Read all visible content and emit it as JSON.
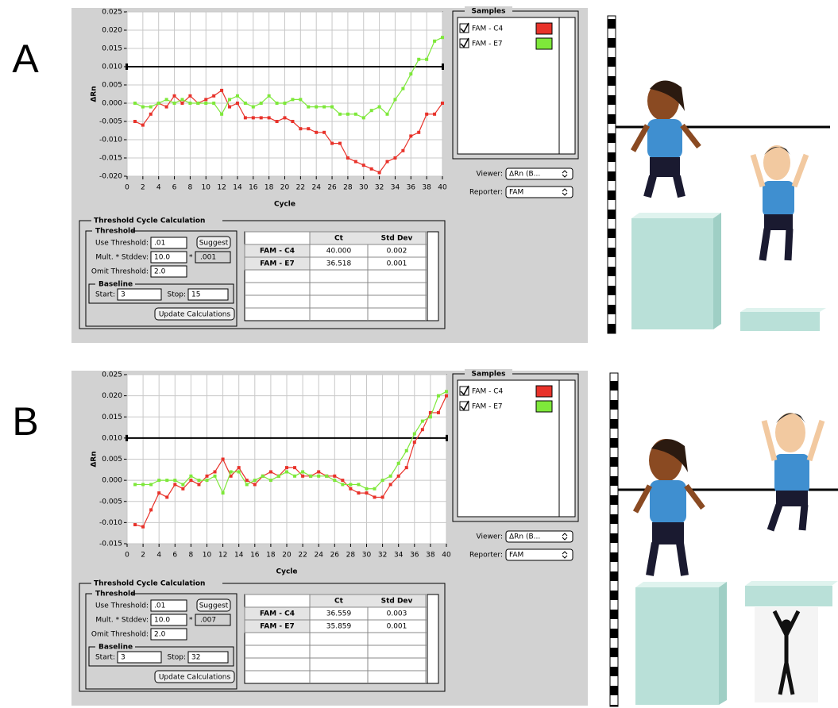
{
  "chart_data": [
    {
      "type": "line",
      "x_label": "Cycle",
      "y_label": "ΔRn",
      "x": [
        1,
        2,
        3,
        4,
        5,
        6,
        7,
        8,
        9,
        10,
        11,
        12,
        13,
        14,
        15,
        16,
        17,
        18,
        19,
        20,
        21,
        22,
        23,
        24,
        25,
        26,
        27,
        28,
        29,
        30,
        31,
        32,
        33,
        34,
        35,
        36,
        37,
        38,
        39,
        40
      ],
      "series": [
        {
          "name": "FAM - C4",
          "color": "#e8322a",
          "values": [
            -0.005,
            -0.006,
            -0.003,
            0.0,
            -0.001,
            0.002,
            0.0,
            0.002,
            0.0,
            0.001,
            0.002,
            0.0035,
            -0.001,
            0.0,
            -0.004,
            -0.004,
            -0.004,
            -0.004,
            -0.005,
            -0.004,
            -0.005,
            -0.007,
            -0.007,
            -0.008,
            -0.008,
            -0.011,
            -0.011,
            -0.015,
            -0.016,
            -0.017,
            -0.018,
            -0.019,
            -0.016,
            -0.015,
            -0.013,
            -0.009,
            -0.008,
            -0.003,
            -0.003,
            0.0
          ]
        },
        {
          "name": "FAM - E7",
          "color": "#7ee83a",
          "values": [
            0.0,
            -0.001,
            -0.001,
            0.0,
            0.001,
            0.0,
            0.001,
            0.0,
            0.0,
            0.0,
            0.0,
            -0.003,
            0.001,
            0.002,
            0.0,
            -0.001,
            0.0,
            0.002,
            0.0,
            0.0,
            0.001,
            0.001,
            -0.001,
            -0.001,
            -0.001,
            -0.001,
            -0.003,
            -0.003,
            -0.003,
            -0.004,
            -0.002,
            -0.001,
            -0.003,
            0.001,
            0.004,
            0.008,
            0.012,
            0.012,
            0.017,
            0.018
          ]
        }
      ],
      "threshold": 0.01,
      "xlim": [
        0,
        40
      ],
      "xticks": [
        0,
        2,
        4,
        6,
        8,
        10,
        12,
        14,
        16,
        18,
        20,
        22,
        24,
        26,
        28,
        30,
        32,
        34,
        36,
        38,
        40
      ],
      "ylim": [
        -0.02,
        0.025
      ],
      "yticks": [
        {
          "value": -0.02,
          "label": "-0.020"
        },
        -0.015,
        {
          "value": -0.01,
          "label": "-0.010"
        },
        -0.005,
        {
          "value": 0,
          "label": "0.000"
        },
        0.005,
        {
          "value": 0.01,
          "label": "0.010"
        },
        0.015,
        {
          "value": 0.02,
          "label": "0.020"
        },
        0.025
      ],
      "grid": true
    },
    {
      "type": "line",
      "x_label": "Cycle",
      "y_label": "ΔRn",
      "x": [
        1,
        2,
        3,
        4,
        5,
        6,
        7,
        8,
        9,
        10,
        11,
        12,
        13,
        14,
        15,
        16,
        17,
        18,
        19,
        20,
        21,
        22,
        23,
        24,
        25,
        26,
        27,
        28,
        29,
        30,
        31,
        32,
        33,
        34,
        35,
        36,
        37,
        38,
        39,
        40
      ],
      "series": [
        {
          "name": "FAM - C4",
          "color": "#e8322a",
          "values": [
            -0.0105,
            -0.011,
            -0.007,
            -0.003,
            -0.004,
            -0.001,
            -0.002,
            0.0,
            -0.001,
            0.001,
            0.002,
            0.005,
            0.001,
            0.003,
            0.0,
            -0.001,
            0.001,
            0.002,
            0.001,
            0.003,
            0.003,
            0.001,
            0.001,
            0.002,
            0.001,
            0.001,
            0.0,
            -0.002,
            -0.003,
            -0.003,
            -0.004,
            -0.004,
            -0.001,
            0.001,
            0.003,
            0.009,
            0.012,
            0.016,
            0.016,
            0.02
          ]
        },
        {
          "name": "FAM - E7",
          "color": "#7ee83a",
          "values": [
            -0.001,
            -0.001,
            -0.001,
            0.0,
            0.0,
            0.0,
            -0.001,
            0.001,
            0.0,
            0.0,
            0.001,
            -0.003,
            0.002,
            0.002,
            -0.001,
            0.0,
            0.001,
            0.0,
            0.001,
            0.002,
            0.001,
            0.002,
            0.001,
            0.001,
            0.001,
            0.0,
            -0.001,
            -0.001,
            -0.001,
            -0.002,
            -0.002,
            0.0,
            0.001,
            0.004,
            0.007,
            0.011,
            0.014,
            0.015,
            0.02,
            0.021
          ]
        }
      ],
      "threshold": 0.01,
      "xlim": [
        0,
        40
      ],
      "xticks": [
        0,
        2,
        4,
        6,
        8,
        10,
        12,
        14,
        16,
        18,
        20,
        22,
        24,
        26,
        28,
        30,
        32,
        34,
        36,
        38,
        40
      ],
      "ylim": [
        -0.015,
        0.025
      ],
      "yticks": [
        -0.015,
        {
          "value": -0.01,
          "label": "-0.010"
        },
        -0.005,
        {
          "value": 0,
          "label": "0.000"
        },
        0.005,
        {
          "value": 0.01,
          "label": "0.010"
        },
        0.015,
        {
          "value": 0.02,
          "label": "0.020"
        },
        0.025
      ],
      "grid": true
    }
  ],
  "panels": [
    {
      "label": "A",
      "samples_title": "Samples",
      "viewer_label": "Viewer:",
      "viewer_value": "ΔRn (B...",
      "reporter_label": "Reporter:",
      "reporter_value": "FAM",
      "calc_title": "Threshold Cycle Calculation",
      "threshold_title": "Threshold",
      "use_threshold_label": "Use Threshold:",
      "use_threshold": ".01",
      "suggest": "Suggest",
      "mult_label": "Mult. * Stddev:",
      "mult": "10.0",
      "mult_sep": "*",
      "mult_result": ".001",
      "omit_label": "Omit Threshold:",
      "omit": "2.0",
      "baseline_title": "Baseline",
      "start_label": "Start:",
      "start": "3",
      "stop_label": "Stop:",
      "stop": "15",
      "update": "Update Calculations",
      "table": {
        "columns": [
          "Ct",
          "Std Dev"
        ],
        "rows": [
          [
            "FAM - C4",
            "40.000",
            "0.002"
          ],
          [
            "FAM - E7",
            "36.518",
            "0.001"
          ]
        ]
      }
    },
    {
      "label": "B",
      "samples_title": "Samples",
      "viewer_label": "Viewer:",
      "viewer_value": "ΔRn (B...",
      "reporter_label": "Reporter:",
      "reporter_value": "FAM",
      "calc_title": "Threshold Cycle Calculation",
      "threshold_title": "Threshold",
      "use_threshold_label": "Use Threshold:",
      "use_threshold": ".01",
      "suggest": "Suggest",
      "mult_label": "Mult. * Stddev:",
      "mult": "10.0",
      "mult_sep": "*",
      "mult_result": ".007",
      "omit_label": "Omit Threshold:",
      "omit": "2.0",
      "baseline_title": "Baseline",
      "start_label": "Start:",
      "start": "3",
      "stop_label": "Stop:",
      "stop": "32",
      "update": "Update Calculations",
      "table": {
        "columns": [
          "Ct",
          "Std Dev"
        ],
        "rows": [
          [
            "FAM - C4",
            "36.559",
            "0.003"
          ],
          [
            "FAM - E7",
            "35.859",
            "0.001"
          ]
        ]
      }
    }
  ]
}
